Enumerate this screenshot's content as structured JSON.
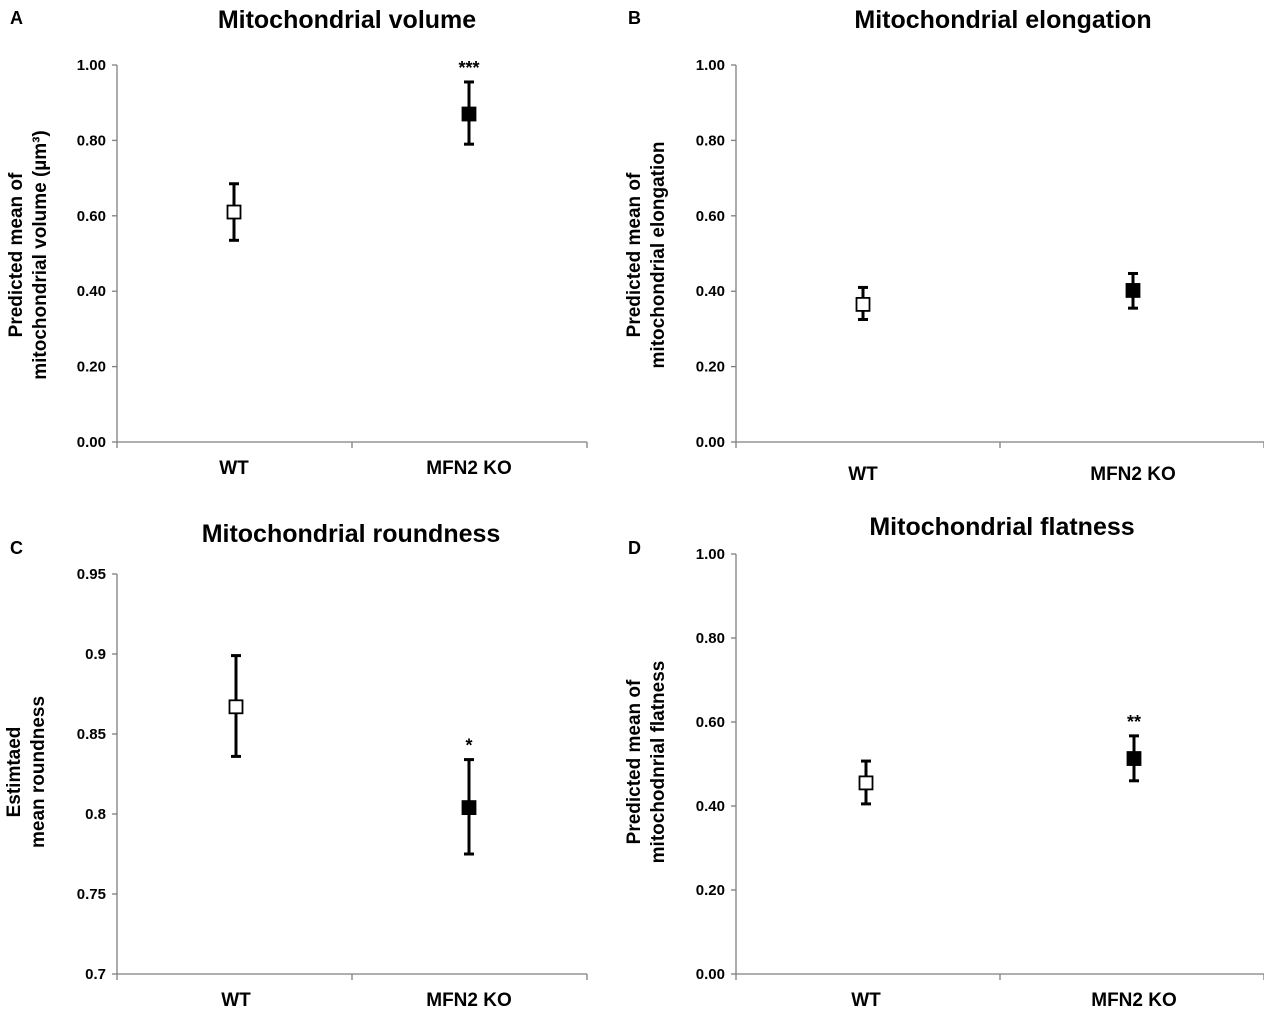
{
  "chart_data": [
    {
      "panel": "A",
      "type": "scatter",
      "title": "Mitochondrial volume",
      "ylabel_lines": [
        "Predicted mean of",
        "mitochondrial volume (µm³)"
      ],
      "categories": [
        "WT",
        "MFN2 KO"
      ],
      "yticks": [
        "0.00",
        "0.20",
        "0.40",
        "0.60",
        "0.80",
        "1.00"
      ],
      "ylim": [
        0,
        1
      ],
      "points": [
        {
          "category": "WT",
          "value": 0.61,
          "lower": 0.535,
          "upper": 0.685,
          "marker": "open-square",
          "significance": ""
        },
        {
          "category": "MFN2 KO",
          "value": 0.87,
          "lower": 0.79,
          "upper": 0.955,
          "marker": "filled-square",
          "significance": "***"
        }
      ]
    },
    {
      "panel": "B",
      "type": "scatter",
      "title": "Mitochondrial elongation",
      "ylabel_lines": [
        "Predicted mean of",
        "mitochondrial elongation"
      ],
      "categories": [
        "WT",
        "MFN2 KO"
      ],
      "yticks": [
        "0.00",
        "0.20",
        "0.40",
        "0.60",
        "0.80",
        "1.00"
      ],
      "ylim": [
        0,
        1
      ],
      "points": [
        {
          "category": "WT",
          "value": 0.365,
          "lower": 0.325,
          "upper": 0.41,
          "marker": "open-square",
          "significance": ""
        },
        {
          "category": "MFN2 KO",
          "value": 0.402,
          "lower": 0.355,
          "upper": 0.447,
          "marker": "filled-square",
          "significance": ""
        }
      ]
    },
    {
      "panel": "C",
      "type": "scatter",
      "title": "Mitochondrial roundness",
      "ylabel_lines": [
        "Estimtaed",
        "mean roundness"
      ],
      "categories": [
        "WT",
        "MFN2 KO"
      ],
      "yticks": [
        "0.7",
        "0.75",
        "0.8",
        "0.85",
        "0.9",
        "0.95"
      ],
      "ylim": [
        0.7,
        0.95
      ],
      "points": [
        {
          "category": "WT",
          "value": 0.867,
          "lower": 0.836,
          "upper": 0.899,
          "marker": "open-square",
          "significance": ""
        },
        {
          "category": "MFN2 KO",
          "value": 0.804,
          "lower": 0.775,
          "upper": 0.834,
          "marker": "filled-square",
          "significance": "*"
        }
      ]
    },
    {
      "panel": "D",
      "type": "scatter",
      "title": "Mitochondrial flatness",
      "ylabel_lines": [
        "Predicted mean of",
        "mitochodnrial flatness"
      ],
      "categories": [
        "WT",
        "MFN2 KO"
      ],
      "yticks": [
        "0.00",
        "0.20",
        "0.40",
        "0.60",
        "0.80",
        "1.00"
      ],
      "ylim": [
        0,
        1
      ],
      "points": [
        {
          "category": "WT",
          "value": 0.455,
          "lower": 0.405,
          "upper": 0.507,
          "marker": "open-square",
          "significance": ""
        },
        {
          "category": "MFN2 KO",
          "value": 0.513,
          "lower": 0.46,
          "upper": 0.567,
          "marker": "filled-square",
          "significance": "**"
        }
      ]
    }
  ],
  "colors": {
    "axis": "#7f7f7f",
    "marker": "#000000",
    "open_fill": "#ffffff"
  }
}
